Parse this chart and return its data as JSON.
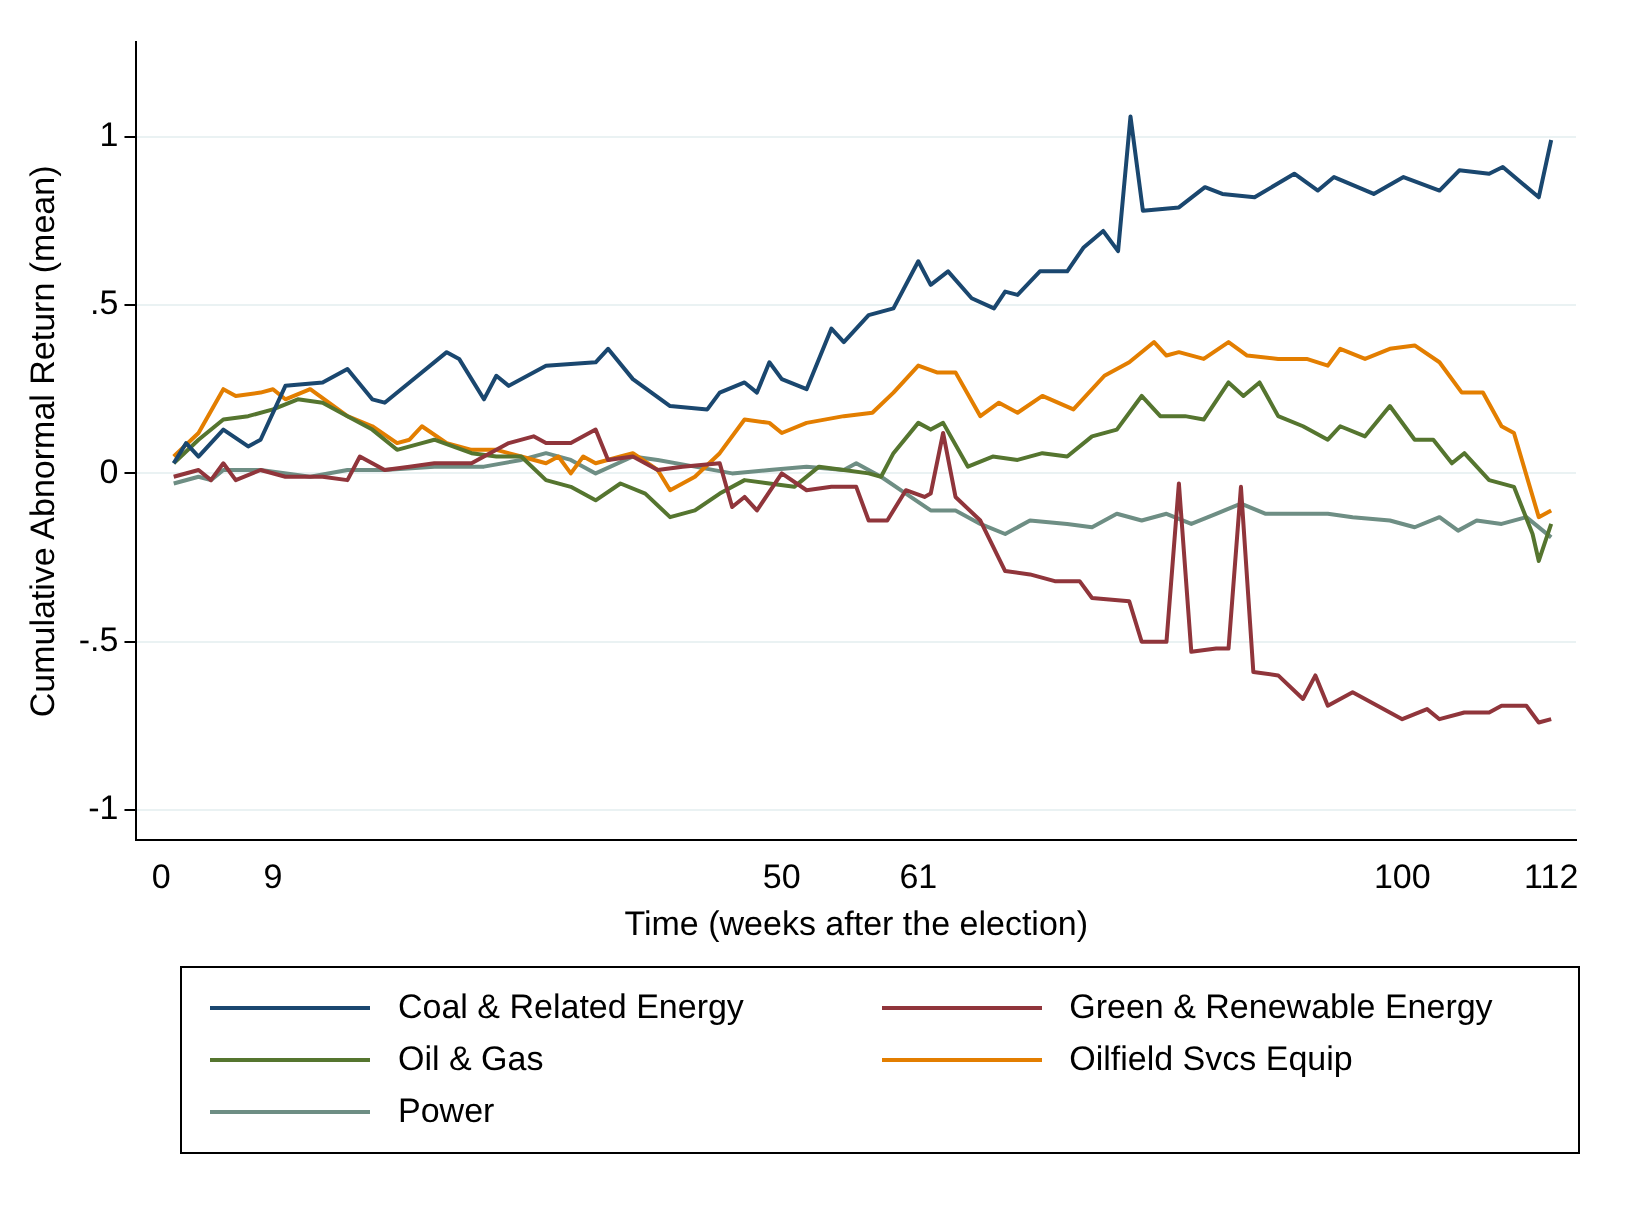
{
  "chart_data": {
    "type": "line",
    "xlabel": "Time (weeks after the election)",
    "ylabel": "Cumulative Abnormal Return (mean)",
    "xlim": [
      -2,
      114
    ],
    "xticks": [
      0,
      9,
      50,
      61,
      100,
      112
    ],
    "ylim": [
      -1.09,
      1.28
    ],
    "yticks": [
      {
        "value": -1,
        "label": "-1"
      },
      {
        "value": -0.5,
        "label": "-.5"
      },
      0,
      {
        "value": 0.5,
        "label": ".5"
      },
      1
    ],
    "grid": "y",
    "legend": "bottom",
    "marker": "none",
    "series": [
      {
        "name": "Coal & Related Energy",
        "color": "#1a476f",
        "x": [
          1,
          2,
          3,
          5,
          7,
          8,
          10,
          13,
          15,
          17,
          18,
          20,
          23,
          24,
          26,
          27,
          28,
          31,
          35,
          36,
          38,
          41,
          44,
          45,
          47,
          48,
          49,
          50,
          52,
          54,
          55,
          57,
          59,
          61,
          62,
          63.4,
          65.3,
          67.1,
          68,
          69,
          70.8,
          73,
          74.3,
          75.9,
          77.1,
          78.1,
          79.1,
          82,
          84.1,
          85.5,
          88.1,
          91.3,
          93.2,
          94.5,
          97.7,
          100.1,
          103,
          104.6,
          107,
          108.1,
          111,
          112
        ],
        "values": [
          0.03,
          0.09,
          0.05,
          0.13,
          0.08,
          0.1,
          0.26,
          0.27,
          0.31,
          0.22,
          0.21,
          0.27,
          0.36,
          0.34,
          0.22,
          0.29,
          0.26,
          0.32,
          0.33,
          0.37,
          0.28,
          0.2,
          0.19,
          0.24,
          0.27,
          0.24,
          0.33,
          0.28,
          0.25,
          0.43,
          0.39,
          0.47,
          0.49,
          0.63,
          0.56,
          0.6,
          0.52,
          0.49,
          0.54,
          0.53,
          0.6,
          0.6,
          0.67,
          0.72,
          0.66,
          1.06,
          0.78,
          0.79,
          0.85,
          0.83,
          0.82,
          0.89,
          0.84,
          0.88,
          0.83,
          0.88,
          0.84,
          0.9,
          0.89,
          0.91,
          0.82,
          0.99
        ]
      },
      {
        "name": "Green & Renewable Energy",
        "color": "#90353b",
        "x": [
          1,
          3,
          4,
          5,
          6,
          8,
          10,
          13,
          15,
          16,
          18,
          20,
          22,
          25,
          28,
          30,
          31,
          33,
          35,
          36,
          38,
          40,
          42,
          45,
          46,
          47,
          48,
          50,
          52,
          54,
          56,
          57,
          58.5,
          60,
          61.5,
          62,
          63,
          64,
          66,
          68,
          70,
          72,
          74,
          75,
          78,
          79,
          81,
          82,
          83,
          85,
          86,
          87,
          88,
          90,
          92,
          93,
          94,
          96,
          98,
          100,
          102,
          103,
          105,
          107,
          108,
          110,
          111,
          112
        ],
        "values": [
          -0.01,
          0.01,
          -0.02,
          0.03,
          -0.02,
          0.01,
          -0.01,
          -0.01,
          -0.02,
          0.05,
          0.01,
          0.02,
          0.03,
          0.03,
          0.09,
          0.11,
          0.09,
          0.09,
          0.13,
          0.04,
          0.05,
          0.01,
          0.02,
          0.03,
          -0.1,
          -0.07,
          -0.11,
          0.0,
          -0.05,
          -0.04,
          -0.04,
          -0.14,
          -0.14,
          -0.05,
          -0.07,
          -0.06,
          0.12,
          -0.07,
          -0.14,
          -0.29,
          -0.3,
          -0.32,
          -0.32,
          -0.37,
          -0.38,
          -0.5,
          -0.5,
          -0.03,
          -0.53,
          -0.52,
          -0.52,
          -0.04,
          -0.59,
          -0.6,
          -0.67,
          -0.6,
          -0.69,
          -0.65,
          -0.69,
          -0.73,
          -0.7,
          -0.73,
          -0.71,
          -0.71,
          -0.69,
          -0.69,
          -0.74,
          -0.73
        ]
      },
      {
        "name": "Oil & Gas",
        "color": "#55752f",
        "x": [
          1,
          3,
          5,
          7,
          9,
          11,
          13,
          15,
          17,
          19,
          21,
          22,
          25,
          27,
          29,
          31,
          33,
          35,
          37,
          39,
          41,
          43,
          45,
          47,
          49,
          51,
          53,
          55,
          57,
          58,
          59,
          61,
          62,
          63,
          65,
          67,
          69,
          71,
          73,
          75,
          77,
          79,
          80.5,
          82.5,
          84,
          86,
          87.2,
          88.5,
          90,
          92,
          94,
          95,
          97,
          99,
          101,
          102.5,
          104,
          105,
          107,
          109,
          110.5,
          111,
          112
        ],
        "values": [
          0.03,
          0.1,
          0.16,
          0.17,
          0.19,
          0.22,
          0.21,
          0.17,
          0.13,
          0.07,
          0.09,
          0.1,
          0.06,
          0.05,
          0.05,
          -0.02,
          -0.04,
          -0.08,
          -0.03,
          -0.06,
          -0.13,
          -0.11,
          -0.06,
          -0.02,
          -0.03,
          -0.04,
          0.02,
          0.01,
          0.0,
          -0.01,
          0.06,
          0.15,
          0.13,
          0.15,
          0.02,
          0.05,
          0.04,
          0.06,
          0.05,
          0.11,
          0.13,
          0.23,
          0.17,
          0.17,
          0.16,
          0.27,
          0.23,
          0.27,
          0.17,
          0.14,
          0.1,
          0.14,
          0.11,
          0.2,
          0.1,
          0.1,
          0.03,
          0.06,
          -0.02,
          -0.04,
          -0.18,
          -0.26,
          -0.15
        ]
      },
      {
        "name": "Oilfield Svcs Equip",
        "color": "#e37e00",
        "x": [
          1,
          3,
          5,
          6,
          8,
          9,
          10,
          12,
          15,
          17,
          19,
          20,
          21,
          23,
          25,
          27,
          29,
          31,
          32,
          33,
          34,
          35,
          37,
          38,
          40,
          41,
          43,
          45,
          47,
          49,
          50,
          52,
          55,
          57.3,
          59,
          61,
          62.5,
          64,
          66,
          67.5,
          69,
          71,
          73.5,
          76,
          78,
          80,
          81,
          82,
          84,
          86,
          87.5,
          90,
          92.3,
          94,
          95,
          97,
          99,
          101,
          103,
          104.8,
          106.5,
          108,
          109,
          111,
          112
        ],
        "values": [
          0.05,
          0.12,
          0.25,
          0.23,
          0.24,
          0.25,
          0.22,
          0.25,
          0.17,
          0.14,
          0.09,
          0.1,
          0.14,
          0.09,
          0.07,
          0.07,
          0.05,
          0.03,
          0.05,
          0.0,
          0.05,
          0.03,
          0.05,
          0.06,
          0.01,
          -0.05,
          -0.01,
          0.06,
          0.16,
          0.15,
          0.12,
          0.15,
          0.17,
          0.18,
          0.24,
          0.32,
          0.3,
          0.3,
          0.17,
          0.21,
          0.18,
          0.23,
          0.19,
          0.29,
          0.33,
          0.39,
          0.35,
          0.36,
          0.34,
          0.39,
          0.35,
          0.34,
          0.34,
          0.32,
          0.37,
          0.34,
          0.37,
          0.38,
          0.33,
          0.24,
          0.24,
          0.14,
          0.12,
          -0.13,
          -0.11
        ]
      },
      {
        "name": "Power",
        "color": "#6e8e84",
        "x": [
          1,
          3,
          4,
          5,
          8,
          12,
          15,
          18,
          22,
          26,
          29,
          31,
          33,
          35,
          38,
          40,
          43,
          46,
          49,
          52,
          55,
          56,
          58,
          60,
          62,
          64,
          66,
          68,
          70,
          73,
          75,
          77,
          79,
          81,
          83,
          85,
          87,
          89,
          92,
          94,
          96,
          99,
          101,
          103,
          104.5,
          106,
          108,
          110,
          112
        ],
        "values": [
          -0.03,
          -0.01,
          -0.02,
          0.01,
          0.01,
          -0.01,
          0.01,
          0.01,
          0.02,
          0.02,
          0.04,
          0.06,
          0.04,
          0.0,
          0.05,
          0.04,
          0.02,
          0.0,
          0.01,
          0.02,
          0.01,
          0.03,
          -0.01,
          -0.06,
          -0.11,
          -0.11,
          -0.15,
          -0.18,
          -0.14,
          -0.15,
          -0.16,
          -0.12,
          -0.14,
          -0.12,
          -0.15,
          -0.12,
          -0.09,
          -0.12,
          -0.12,
          -0.12,
          -0.13,
          -0.14,
          -0.16,
          -0.13,
          -0.17,
          -0.14,
          -0.15,
          -0.13,
          -0.19
        ]
      }
    ]
  }
}
